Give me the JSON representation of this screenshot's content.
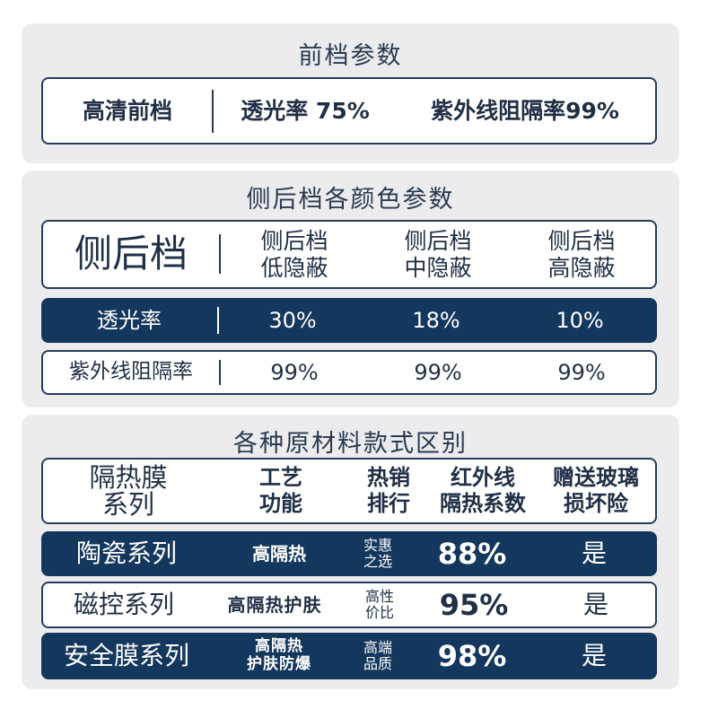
{
  "front": {
    "title": "前档参数",
    "label": "高清前档",
    "transmittance": "透光率 75%",
    "uv": "紫外线阻隔率99%"
  },
  "side": {
    "title": "侧后档各颜色参数",
    "label": "侧后档",
    "columns": [
      [
        "侧后档",
        "低隐蔽"
      ],
      [
        "侧后档",
        "中隐蔽"
      ],
      [
        "侧后档",
        "高隐蔽"
      ]
    ],
    "rows": [
      {
        "label": "透光率",
        "values": [
          "30%",
          "18%",
          "10%"
        ]
      },
      {
        "label": "紫外线阻隔率",
        "values": [
          "99%",
          "99%",
          "99%"
        ]
      }
    ]
  },
  "materials": {
    "title": "各种原材料款式区别",
    "headers": [
      [
        "隔热膜",
        "系列"
      ],
      [
        "工艺",
        "功能"
      ],
      [
        "热销",
        "排行"
      ],
      [
        "红外线",
        "隔热系数"
      ],
      [
        "赠送玻璃",
        "损坏险"
      ]
    ],
    "rows": [
      {
        "series": "陶瓷系列",
        "function": [
          "高隔热"
        ],
        "rank": [
          "实惠",
          "之选"
        ],
        "coef": "88%",
        "insurance": "是"
      },
      {
        "series": "磁控系列",
        "function": [
          "高隔热护肤"
        ],
        "rank": [
          "高性",
          "价比"
        ],
        "coef": "95%",
        "insurance": "是"
      },
      {
        "series": "安全膜系列",
        "function": [
          "高隔热",
          "护肤防爆"
        ],
        "rank": [
          "高端",
          "品质"
        ],
        "coef": "98%",
        "insurance": "是"
      }
    ]
  },
  "colors": {
    "navy": "#14375d",
    "panel": "#ececef",
    "border": "#263c5a"
  }
}
